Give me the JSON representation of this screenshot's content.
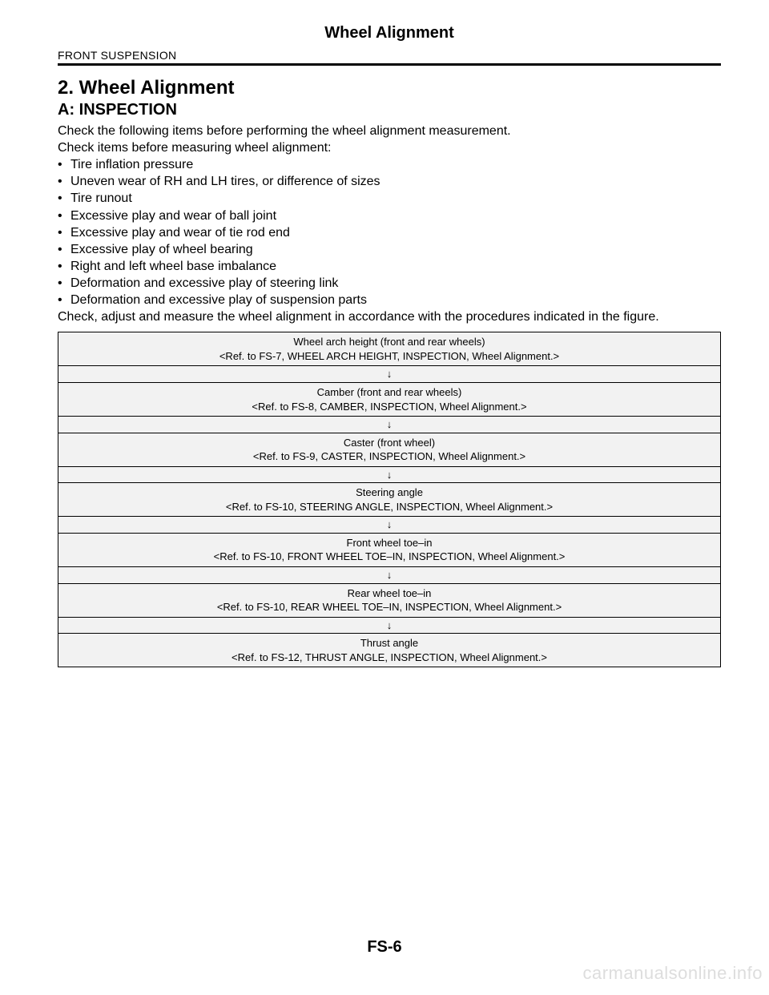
{
  "header": {
    "title": "Wheel Alignment",
    "breadcrumb": "FRONT SUSPENSION"
  },
  "section": {
    "number_title": "2.  Wheel Alignment",
    "sub": "A:  INSPECTION",
    "intro1": "Check the following items before performing the wheel alignment measurement.",
    "intro2": "Check items before measuring wheel alignment:",
    "bullets": [
      "Tire inflation pressure",
      "Uneven wear of RH and LH tires, or difference of sizes",
      "Tire runout",
      "Excessive play and wear of ball joint",
      "Excessive play and wear of tie rod end",
      "Excessive play of wheel bearing",
      "Right and left wheel base imbalance",
      "Deformation and excessive play of steering link",
      "Deformation and excessive play of suspension parts"
    ],
    "outro": "Check, adjust and measure the wheel alignment in accordance with the procedures indicated in the figure."
  },
  "flow": {
    "arrow": "↓",
    "steps": [
      {
        "t1": "Wheel arch height (front and rear wheels)",
        "t2": "<Ref. to FS-7, WHEEL ARCH HEIGHT, INSPECTION, Wheel Alignment.>"
      },
      {
        "t1": "Camber (front and rear wheels)",
        "t2": "<Ref. to FS-8, CAMBER, INSPECTION, Wheel Alignment.>"
      },
      {
        "t1": "Caster (front wheel)",
        "t2": "<Ref. to FS-9, CASTER, INSPECTION, Wheel Alignment.>"
      },
      {
        "t1": "Steering angle",
        "t2": "<Ref. to FS-10, STEERING ANGLE, INSPECTION, Wheel Alignment.>"
      },
      {
        "t1": "Front wheel toe–in",
        "t2": "<Ref. to FS-10, FRONT WHEEL TOE–IN, INSPECTION, Wheel Alignment.>"
      },
      {
        "t1": "Rear wheel toe–in",
        "t2": "<Ref. to FS-10, REAR WHEEL TOE–IN, INSPECTION, Wheel Alignment.>"
      },
      {
        "t1": "Thrust angle",
        "t2": "<Ref. to FS-12, THRUST ANGLE, INSPECTION, Wheel Alignment.>"
      }
    ]
  },
  "footer": {
    "page": "FS-6",
    "watermark": "carmanualsonline.info"
  },
  "style": {
    "cell_bg": "#f2f2f2",
    "border_color": "#000000",
    "text_color": "#000000",
    "watermark_color": "#dddddd"
  }
}
